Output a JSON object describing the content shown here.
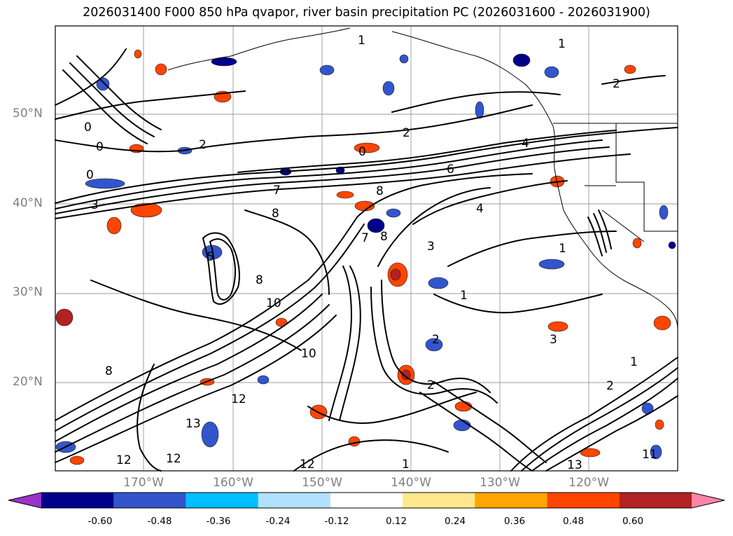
{
  "title": "2026031400 F000 850 hPa qvapor, river basin precipitation PC (2026031600 - 2026031900)",
  "lat_labels": [
    "50°N",
    "40°N",
    "30°N",
    "20°N"
  ],
  "lon_labels": [
    "170°W",
    "160°W",
    "150°W",
    "140°W",
    "130°W",
    "120°W"
  ],
  "contour_labels": [
    "1",
    "1",
    "2",
    "2",
    "0",
    "0",
    "0",
    "0",
    "4",
    "6",
    "7",
    "8",
    "8",
    "8",
    "5",
    "4",
    "3",
    "7",
    "8",
    "10",
    "10",
    "1",
    "1",
    "2",
    "3",
    "8",
    "12",
    "13",
    "12",
    "12",
    "12",
    "1",
    "2",
    "1",
    "2",
    "13",
    "11",
    "2",
    "3"
  ],
  "colorbar": {
    "colors": [
      "#9933cc",
      "#00008b",
      "#3355cc",
      "#00bfff",
      "#b0e2ff",
      "#ffffff",
      "#ffe88c",
      "#ffa500",
      "#ff4500",
      "#b22222",
      "#ff85a8"
    ],
    "ticks": [
      "-0.60",
      "-0.48",
      "-0.36",
      "-0.24",
      "-0.12",
      "0.12",
      "0.24",
      "0.36",
      "0.48",
      "0.60"
    ]
  }
}
